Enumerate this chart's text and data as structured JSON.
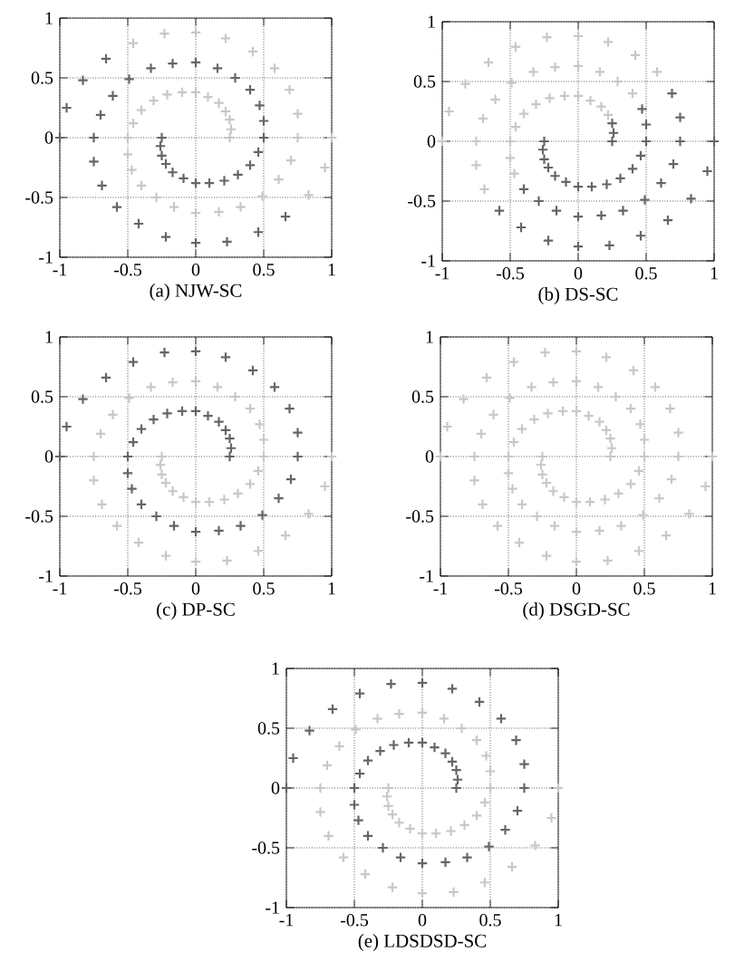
{
  "chart_data": [
    {
      "type": "scatter",
      "title": "(a) NJW-SC",
      "xlim": [
        -1,
        1
      ],
      "ylim": [
        -1,
        1
      ],
      "xticks": [
        -1,
        -0.5,
        0,
        0.5,
        1
      ],
      "yticks": [
        -1,
        -0.5,
        0,
        0.5,
        1
      ],
      "grid": true,
      "marker": "cross",
      "series": [
        {
          "color": "#c8c8c8",
          "x": [
            0.25,
            0.26,
            0.25,
            0.22,
            0.17,
            0.09,
            0,
            -0.1,
            -0.21,
            -0.31,
            -0.4,
            -0.46,
            -0.5,
            -0.5,
            -0.47,
            -0.4,
            -0.29,
            -0.16,
            0,
            0.17,
            0.33,
            0.49,
            0.61,
            0.7,
            0.75,
            0.75,
            0.69,
            0.58,
            0.42,
            0.22,
            0,
            -0.23,
            -0.46
          ],
          "values": [
            0,
            0.07,
            0.15,
            0.22,
            0.29,
            0.34,
            0.38,
            0.38,
            0.36,
            0.31,
            0.23,
            0.12,
            0,
            -0.14,
            -0.27,
            -0.4,
            -0.5,
            -0.58,
            -0.63,
            -0.62,
            -0.58,
            -0.49,
            -0.35,
            -0.19,
            0,
            0.2,
            0.4,
            0.58,
            0.72,
            0.83,
            0.88,
            0.87,
            0.79
          ]
        },
        {
          "color": "#c8c8c8",
          "x": [
            0.83,
            0.95,
            1
          ],
          "values": [
            -0.48,
            -0.25,
            0
          ]
        },
        {
          "color": "#666666",
          "x": [
            -0.25,
            -0.26,
            -0.25,
            -0.22,
            -0.17,
            -0.09,
            0,
            0.1,
            0.21,
            0.31,
            0.4,
            0.46,
            0.5,
            0.5,
            0.47,
            0.4,
            0.29,
            0.16,
            0,
            -0.17,
            -0.33,
            -0.49,
            -0.61,
            -0.7,
            -0.75,
            -0.75,
            -0.69,
            -0.58,
            -0.42,
            -0.22,
            0,
            0.23,
            0.46,
            0.66
          ],
          "values": [
            0,
            -0.07,
            -0.15,
            -0.22,
            -0.29,
            -0.34,
            -0.38,
            -0.38,
            -0.36,
            -0.31,
            -0.23,
            -0.12,
            0,
            0.14,
            0.27,
            0.4,
            0.5,
            0.58,
            0.63,
            0.62,
            0.58,
            0.49,
            0.35,
            0.19,
            0,
            -0.2,
            -0.4,
            -0.58,
            -0.72,
            -0.83,
            -0.88,
            -0.87,
            -0.79,
            -0.66
          ]
        },
        {
          "color": "#666666",
          "x": [
            -0.66,
            -0.83,
            -0.95,
            -1
          ],
          "values": [
            0.66,
            0.48,
            0.25,
            0
          ]
        }
      ]
    },
    {
      "type": "scatter",
      "title": "(b) DS-SC",
      "xlim": [
        -1,
        1
      ],
      "ylim": [
        -1,
        1
      ],
      "xticks": [
        -1,
        -0.5,
        0,
        0.5,
        1
      ],
      "yticks": [
        -1,
        -0.5,
        0,
        0.5,
        1
      ],
      "grid": true,
      "marker": "cross",
      "series": [
        {
          "color": "#c8c8c8",
          "x": [
            0.22,
            0.17,
            0.09,
            0,
            -0.1,
            -0.21,
            -0.31,
            -0.4,
            -0.46,
            -0.5,
            -0.5,
            -0.47
          ],
          "values": [
            0.22,
            0.29,
            0.34,
            0.38,
            0.38,
            0.36,
            0.31,
            0.23,
            0.12,
            0,
            -0.14,
            -0.27
          ]
        },
        {
          "color": "#c8c8c8",
          "x": [
            0.58,
            0.42,
            0.22,
            0,
            -0.23,
            -0.46,
            -0.66,
            -0.83,
            -0.95,
            -1
          ],
          "values": [
            0.58,
            0.72,
            0.83,
            0.88,
            0.87,
            0.79,
            0.66,
            0.48,
            0.25,
            0
          ]
        },
        {
          "color": "#c8c8c8",
          "x": [
            0.4,
            0.29,
            0.16,
            0,
            -0.17,
            -0.33,
            -0.49,
            -0.61,
            -0.7,
            -0.75,
            -0.75,
            -0.69
          ],
          "values": [
            0.4,
            0.5,
            0.58,
            0.63,
            0.62,
            0.58,
            0.49,
            0.35,
            0.19,
            0,
            -0.2,
            -0.4
          ]
        },
        {
          "color": "#666666",
          "x": [
            0.25,
            0.26,
            0.25
          ],
          "values": [
            0,
            0.07,
            0.15
          ]
        },
        {
          "color": "#666666",
          "x": [
            -0.4,
            -0.29,
            -0.16,
            0,
            0.17,
            0.33,
            0.49,
            0.61,
            0.7,
            0.75,
            0.75,
            0.69
          ],
          "values": [
            -0.4,
            -0.5,
            -0.58,
            -0.63,
            -0.62,
            -0.58,
            -0.49,
            -0.35,
            -0.19,
            0,
            0.2,
            0.4
          ]
        },
        {
          "color": "#666666",
          "x": [
            -0.25,
            -0.26,
            -0.25,
            -0.22,
            -0.17,
            -0.09,
            0,
            0.1,
            0.21,
            0.31,
            0.4,
            0.46,
            0.5,
            0.5,
            0.47
          ],
          "values": [
            0,
            -0.07,
            -0.15,
            -0.22,
            -0.29,
            -0.34,
            -0.38,
            -0.38,
            -0.36,
            -0.31,
            -0.23,
            -0.12,
            0,
            0.14,
            0.27
          ]
        },
        {
          "color": "#666666",
          "x": [
            -0.58,
            -0.42,
            -0.22,
            0,
            0.23,
            0.46,
            0.66,
            0.83,
            0.95,
            1
          ],
          "values": [
            -0.58,
            -0.72,
            -0.83,
            -0.88,
            -0.87,
            -0.79,
            -0.66,
            -0.48,
            -0.25,
            0
          ]
        }
      ]
    },
    {
      "type": "scatter",
      "title": "(c) DP-SC",
      "xlim": [
        -1,
        1
      ],
      "ylim": [
        -1,
        1
      ],
      "xticks": [
        -1,
        -0.5,
        0,
        0.5,
        1
      ],
      "yticks": [
        -1,
        -0.5,
        0,
        0.5,
        1
      ],
      "grid": true,
      "marker": "cross",
      "series": [
        {
          "color": "#c8c8c8",
          "x": [
            -0.25,
            -0.26,
            -0.25,
            -0.22,
            -0.17,
            -0.09,
            0,
            0.1,
            0.21,
            0.31,
            0.4,
            0.46,
            0.5,
            0.5,
            0.47,
            0.4,
            0.29,
            0.16,
            0,
            -0.17,
            -0.33,
            -0.49,
            -0.61,
            -0.7,
            -0.75,
            -0.75,
            -0.69,
            -0.58,
            -0.42,
            -0.22,
            0,
            0.23,
            0.46,
            0.66,
            0.83,
            0.95,
            1
          ],
          "values": [
            0,
            -0.07,
            -0.15,
            -0.22,
            -0.29,
            -0.34,
            -0.38,
            -0.38,
            -0.36,
            -0.31,
            -0.23,
            -0.12,
            0,
            0.14,
            0.27,
            0.4,
            0.5,
            0.58,
            0.63,
            0.62,
            0.58,
            0.49,
            0.35,
            0.19,
            0,
            -0.2,
            -0.4,
            -0.58,
            -0.72,
            -0.83,
            -0.88,
            -0.87,
            -0.79,
            -0.66,
            -0.48,
            -0.25,
            0
          ]
        },
        {
          "color": "#666666",
          "x": [
            0.25,
            0.26,
            0.25,
            0.22,
            0.17,
            0.09,
            0,
            -0.1,
            -0.21,
            -0.31,
            -0.4,
            -0.46,
            -0.5,
            -0.5,
            -0.47,
            -0.4,
            -0.29,
            -0.16,
            0,
            0.17,
            0.33,
            0.49,
            0.61,
            0.7,
            0.75,
            0.75,
            0.69,
            0.58,
            0.42,
            0.22,
            0,
            -0.23,
            -0.46,
            -0.66,
            -0.83,
            -0.95,
            -1
          ],
          "values": [
            0,
            0.07,
            0.15,
            0.22,
            0.29,
            0.34,
            0.38,
            0.38,
            0.36,
            0.31,
            0.23,
            0.12,
            0,
            -0.14,
            -0.27,
            -0.4,
            -0.5,
            -0.58,
            -0.63,
            -0.62,
            -0.58,
            -0.49,
            -0.35,
            -0.19,
            0,
            0.2,
            0.4,
            0.58,
            0.72,
            0.83,
            0.88,
            0.87,
            0.79,
            0.66,
            0.48,
            0.25,
            0
          ]
        }
      ]
    },
    {
      "type": "scatter",
      "title": "(d) DSGD-SC",
      "xlim": [
        -1,
        1
      ],
      "ylim": [
        -1,
        1
      ],
      "xticks": [
        -1,
        -0.5,
        0,
        0.5,
        1
      ],
      "yticks": [
        -1,
        -0.5,
        0,
        0.5,
        1
      ],
      "grid": true,
      "marker": "cross",
      "series": [
        {
          "color": "#c8c8c8",
          "x": [
            -0.25,
            -0.26,
            -0.25,
            -0.22,
            -0.17,
            -0.09,
            0,
            0.1,
            0.21,
            0.31,
            0.4,
            0.46,
            0.5,
            0.5,
            0.47,
            0.4,
            0.29,
            0.16,
            0,
            -0.17,
            -0.33,
            -0.49,
            -0.61,
            -0.7,
            -0.75,
            -0.75,
            -0.69,
            -0.58,
            -0.42,
            -0.22,
            0,
            0.23,
            0.46,
            0.66,
            0.83,
            0.95,
            1
          ],
          "values": [
            0,
            -0.07,
            -0.15,
            -0.22,
            -0.29,
            -0.34,
            -0.38,
            -0.38,
            -0.36,
            -0.31,
            -0.23,
            -0.12,
            0,
            0.14,
            0.27,
            0.4,
            0.5,
            0.58,
            0.63,
            0.62,
            0.58,
            0.49,
            0.35,
            0.19,
            0,
            -0.2,
            -0.4,
            -0.58,
            -0.72,
            -0.83,
            -0.88,
            -0.87,
            -0.79,
            -0.66,
            -0.48,
            -0.25,
            0
          ]
        },
        {
          "color": "#c8c8c8",
          "x": [
            0.25,
            0.26,
            0.25,
            0.22,
            0.17,
            0.09,
            0,
            -0.1,
            -0.21,
            -0.31,
            -0.4,
            -0.46,
            -0.5,
            -0.5,
            -0.47,
            -0.4,
            -0.29,
            -0.16,
            0,
            0.17,
            0.33,
            0.49,
            0.61,
            0.7,
            0.75,
            0.75,
            0.69,
            0.58,
            0.42,
            0.22,
            0,
            -0.23,
            -0.46,
            -0.66,
            -0.83,
            -0.95,
            -1
          ],
          "values": [
            0,
            0.07,
            0.15,
            0.22,
            0.29,
            0.34,
            0.38,
            0.38,
            0.36,
            0.31,
            0.23,
            0.12,
            0,
            -0.14,
            -0.27,
            -0.4,
            -0.5,
            -0.58,
            -0.63,
            -0.62,
            -0.58,
            -0.49,
            -0.35,
            -0.19,
            0,
            0.2,
            0.4,
            0.58,
            0.72,
            0.83,
            0.88,
            0.87,
            0.79,
            0.66,
            0.48,
            0.25,
            0
          ]
        }
      ]
    },
    {
      "type": "scatter",
      "title": "(e) LDSDSD-SC",
      "xlim": [
        -1,
        1
      ],
      "ylim": [
        -1,
        1
      ],
      "xticks": [
        -1,
        -0.5,
        0,
        0.5,
        1
      ],
      "yticks": [
        -1,
        -0.5,
        0,
        0.5,
        1
      ],
      "grid": true,
      "marker": "cross",
      "series": [
        {
          "color": "#c8c8c8",
          "x": [
            -0.25,
            -0.26,
            -0.25,
            -0.22,
            -0.17,
            -0.09,
            0,
            0.1,
            0.21,
            0.31,
            0.4,
            0.46,
            0.5,
            0.5,
            0.47,
            0.4,
            0.29,
            0.16,
            0,
            -0.17,
            -0.33,
            -0.49,
            -0.61,
            -0.7,
            -0.75,
            -0.75,
            -0.69,
            -0.58,
            -0.42,
            -0.22,
            0,
            0.23,
            0.46,
            0.66,
            0.83,
            0.95,
            1
          ],
          "values": [
            0,
            -0.07,
            -0.15,
            -0.22,
            -0.29,
            -0.34,
            -0.38,
            -0.38,
            -0.36,
            -0.31,
            -0.23,
            -0.12,
            0,
            0.14,
            0.27,
            0.4,
            0.5,
            0.58,
            0.63,
            0.62,
            0.58,
            0.49,
            0.35,
            0.19,
            0,
            -0.2,
            -0.4,
            -0.58,
            -0.72,
            -0.83,
            -0.88,
            -0.87,
            -0.79,
            -0.66,
            -0.48,
            -0.25,
            0
          ]
        },
        {
          "color": "#666666",
          "x": [
            0.25,
            0.26,
            0.25,
            0.22,
            0.17,
            0.09,
            0,
            -0.1,
            -0.21,
            -0.31,
            -0.4,
            -0.46,
            -0.5,
            -0.5,
            -0.47,
            -0.4,
            -0.29,
            -0.16,
            0,
            0.17,
            0.33,
            0.49,
            0.61,
            0.7,
            0.75,
            0.75,
            0.69,
            0.58,
            0.42,
            0.22,
            0,
            -0.23,
            -0.46,
            -0.66,
            -0.83,
            -0.95,
            -1
          ],
          "values": [
            0,
            0.07,
            0.15,
            0.22,
            0.29,
            0.34,
            0.38,
            0.38,
            0.36,
            0.31,
            0.23,
            0.12,
            0,
            -0.14,
            -0.27,
            -0.4,
            -0.5,
            -0.58,
            -0.63,
            -0.62,
            -0.58,
            -0.49,
            -0.35,
            -0.19,
            0,
            0.2,
            0.4,
            0.58,
            0.72,
            0.83,
            0.88,
            0.87,
            0.79,
            0.66,
            0.48,
            0.25,
            0
          ]
        }
      ]
    }
  ]
}
